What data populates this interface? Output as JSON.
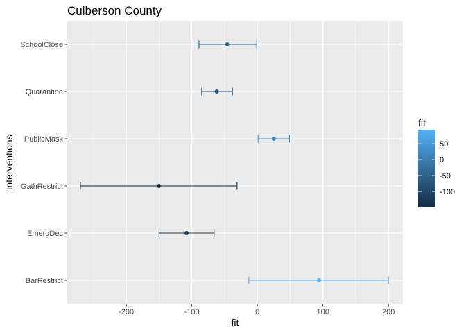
{
  "chart_data": {
    "type": "errorbar",
    "title": "Culberson County",
    "xlabel": "fit",
    "ylabel": "interventions",
    "xlim": [
      -290,
      222
    ],
    "x_ticks": [
      -200,
      -100,
      0,
      100,
      200
    ],
    "x_tick_labels": [
      "-200",
      "-100",
      "0",
      "100",
      "200"
    ],
    "categories": [
      "BarRestrict",
      "EmergDec",
      "GathRestrict",
      "PublicMask",
      "Quarantine",
      "SchoolClose"
    ],
    "series": [
      {
        "values": [
          94,
          -108,
          -150,
          25,
          -62,
          -46
        ],
        "lower": [
          -13,
          -150,
          -270,
          1,
          -85,
          -89
        ],
        "upper": [
          200,
          -66,
          -31,
          49,
          -38,
          -1
        ]
      }
    ],
    "grid": true,
    "legend": {
      "title": "fit",
      "position": "right",
      "ticks": [
        50,
        0,
        -50,
        -100
      ],
      "tick_labels": [
        "50",
        "0",
        "-50",
        "-100"
      ],
      "range": [
        -150,
        94
      ],
      "color_low": "#132B43",
      "color_high": "#56B1F7"
    },
    "panel_background": "#EBEBEB"
  }
}
